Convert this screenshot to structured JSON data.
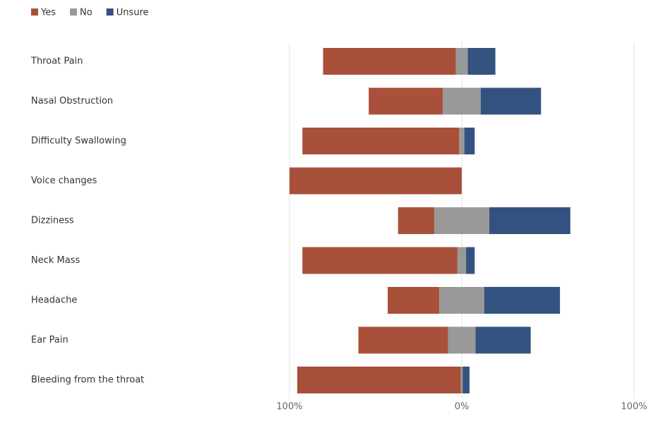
{
  "chart_data": {
    "type": "diverging_bar",
    "categories": [
      "Throat Pain",
      "Nasal Obstruction",
      "Difficulty Swallowing",
      "Voice changes",
      "Dizziness",
      "Neck Mass",
      "Headache",
      "Ear Pain",
      "Bleeding from the throat"
    ],
    "series": [
      {
        "name": "Yes",
        "color": "#a9503a",
        "values": [
          77,
          43,
          91,
          100,
          21,
          90,
          30,
          52,
          95
        ]
      },
      {
        "name": "No",
        "color": "#999999",
        "values": [
          7,
          22,
          3,
          0,
          32,
          5,
          26,
          16,
          1
        ]
      },
      {
        "name": "Unsure",
        "color": "#34527f",
        "values": [
          16,
          35,
          6,
          0,
          47,
          5,
          44,
          32,
          4
        ]
      }
    ],
    "xlim": [
      -100,
      100
    ],
    "xticks": [
      {
        "value": -100,
        "label": "100%"
      },
      {
        "value": 0,
        "label": "0%"
      },
      {
        "value": 100,
        "label": "100%"
      }
    ],
    "grid": true,
    "legend": "top-left"
  }
}
